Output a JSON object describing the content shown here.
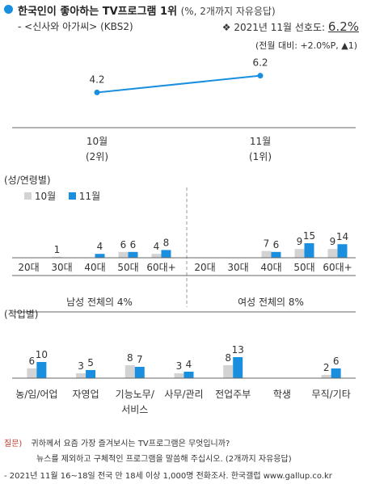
{
  "header": {
    "title": "한국인이 좋아하는 TV프로그램 1위",
    "title_note": "(%, 2개까지 자유응답)",
    "program": "- <신사와 아가씨> (KBS2)",
    "rating_label": "2021년 11월 선호도:",
    "rating_value": "6.2%",
    "change_note": "(전월 대비: +2.0%P, ▲1)"
  },
  "chart_data": [
    {
      "type": "line",
      "title": "",
      "x": [
        "10월",
        "11월"
      ],
      "x_sublabels": [
        "(2위)",
        "(1위)"
      ],
      "values": [
        4.2,
        6.2
      ],
      "color": "#1a8fe0"
    },
    {
      "type": "bar",
      "title": "(성/연령별)",
      "legend": [
        "10월",
        "11월"
      ],
      "groups": [
        {
          "label": "남성 전체의 4%",
          "categories": [
            "20대",
            "30대",
            "40대",
            "50대",
            "60대+"
          ],
          "series": [
            {
              "name": "10월",
              "values": [
                0,
                1,
                0,
                6,
                4
              ],
              "labels": [
                "",
                "1",
                "",
                "6",
                "4"
              ]
            },
            {
              "name": "11월",
              "values": [
                0,
                0,
                4,
                6,
                8
              ],
              "labels": [
                "",
                "",
                "4",
                "6",
                "8"
              ]
            }
          ]
        },
        {
          "label": "여성 전체의 8%",
          "categories": [
            "20대",
            "30대",
            "40대",
            "50대",
            "60대+"
          ],
          "series": [
            {
              "name": "10월",
              "values": [
                0,
                0,
                7,
                9,
                9
              ],
              "labels": [
                "",
                "",
                "7",
                "9",
                "9"
              ]
            },
            {
              "name": "11월",
              "values": [
                0,
                0,
                6,
                15,
                14
              ],
              "labels": [
                "",
                "",
                "6",
                "15",
                "14"
              ]
            }
          ]
        }
      ]
    },
    {
      "type": "bar",
      "title": "(직업별)",
      "categories": [
        "농/임/어업",
        "자영업",
        "기능노무/\n서비스",
        "사무/관리",
        "전업주부",
        "학생",
        "무직/기타"
      ],
      "series": [
        {
          "name": "10월",
          "values": [
            6,
            3,
            8,
            3,
            8,
            0,
            2
          ],
          "labels": [
            "6",
            "3",
            "8",
            "3",
            "8",
            "",
            "2"
          ]
        },
        {
          "name": "11월",
          "values": [
            10,
            5,
            7,
            4,
            13,
            0,
            6
          ],
          "labels": [
            "10",
            "5",
            "7",
            "4",
            "13",
            "",
            "6"
          ]
        }
      ]
    }
  ],
  "colors": {
    "accent": "#1a8fe0",
    "prev": "#d3d3d3",
    "question": "#c0392b"
  },
  "footer": {
    "question_label": "질문)",
    "question_text": "귀하께서 요즘 가장 즐겨보시는 TV프로그램은 무엇입니까?",
    "question_text2": "뉴스를 제외하고 구체적인 프로그램을 말씀해 주십시오. (2개까지 자유응답)",
    "source": "- 2021년 11월 16~18일 전국 만 18세 이상 1,000명 전화조사. 한국갤럽 www.gallup.co.kr"
  }
}
